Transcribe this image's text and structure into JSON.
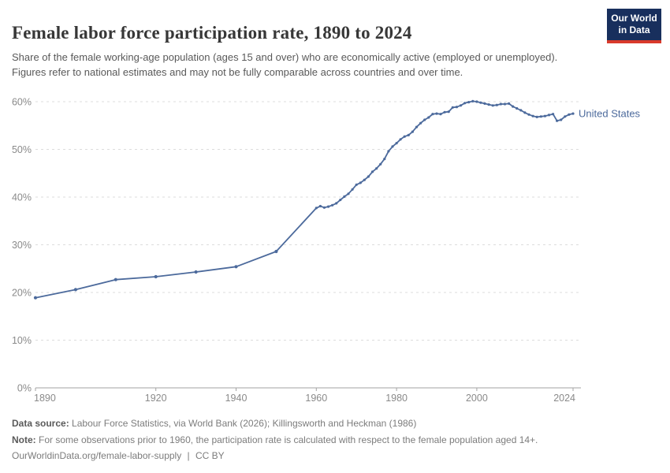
{
  "header": {
    "title": "Female labor force participation rate, 1890 to 2024",
    "subtitle": "Share of the female working-age population (ages 15 and over) who are economically active (employed or unemployed). Figures refer to national estimates and may not be fully comparable across countries and over time.",
    "logo": {
      "line1": "Our World",
      "line2": "in Data",
      "bg_color": "#182f5d",
      "accent_color": "#d93a2b"
    }
  },
  "chart_data": {
    "type": "line",
    "title": "Female labor force participation rate, 1890 to 2024",
    "xlabel": "",
    "ylabel": "",
    "xlim": [
      1890,
      2024
    ],
    "ylim": [
      0,
      60
    ],
    "grid": "horizontal-dashed",
    "legend_position": "end-of-line",
    "x_ticks": [
      1890,
      1920,
      1940,
      1960,
      1980,
      2000,
      2024
    ],
    "x_tick_labels": [
      "1890",
      "1920",
      "1940",
      "1960",
      "1980",
      "2000",
      "2024"
    ],
    "y_ticks": [
      0,
      10,
      20,
      30,
      40,
      50,
      60
    ],
    "y_tick_labels": [
      "0%",
      "10%",
      "20%",
      "30%",
      "40%",
      "50%",
      "60%"
    ],
    "series": [
      {
        "name": "United States",
        "color": "#4C6A9C",
        "points": [
          [
            1890,
            18.9
          ],
          [
            1900,
            20.6
          ],
          [
            1910,
            22.7
          ],
          [
            1920,
            23.3
          ],
          [
            1930,
            24.3
          ],
          [
            1940,
            25.4
          ],
          [
            1950,
            28.6
          ],
          [
            1960,
            37.7
          ],
          [
            1961,
            38.1
          ],
          [
            1962,
            37.8
          ],
          [
            1963,
            38.0
          ],
          [
            1964,
            38.3
          ],
          [
            1965,
            38.7
          ],
          [
            1966,
            39.4
          ],
          [
            1967,
            40.1
          ],
          [
            1968,
            40.7
          ],
          [
            1969,
            41.6
          ],
          [
            1970,
            42.6
          ],
          [
            1971,
            43.0
          ],
          [
            1972,
            43.6
          ],
          [
            1973,
            44.3
          ],
          [
            1974,
            45.3
          ],
          [
            1975,
            46.0
          ],
          [
            1976,
            46.9
          ],
          [
            1977,
            48.0
          ],
          [
            1978,
            49.6
          ],
          [
            1979,
            50.6
          ],
          [
            1980,
            51.3
          ],
          [
            1981,
            52.1
          ],
          [
            1982,
            52.7
          ],
          [
            1983,
            53.0
          ],
          [
            1984,
            53.7
          ],
          [
            1985,
            54.7
          ],
          [
            1986,
            55.5
          ],
          [
            1987,
            56.2
          ],
          [
            1988,
            56.7
          ],
          [
            1989,
            57.4
          ],
          [
            1990,
            57.5
          ],
          [
            1991,
            57.4
          ],
          [
            1992,
            57.8
          ],
          [
            1993,
            57.9
          ],
          [
            1994,
            58.8
          ],
          [
            1995,
            58.9
          ],
          [
            1996,
            59.2
          ],
          [
            1997,
            59.7
          ],
          [
            1998,
            59.9
          ],
          [
            1999,
            60.1
          ],
          [
            2000,
            60.0
          ],
          [
            2001,
            59.8
          ],
          [
            2002,
            59.6
          ],
          [
            2003,
            59.4
          ],
          [
            2004,
            59.2
          ],
          [
            2005,
            59.3
          ],
          [
            2006,
            59.5
          ],
          [
            2007,
            59.5
          ],
          [
            2008,
            59.6
          ],
          [
            2009,
            59.0
          ],
          [
            2010,
            58.6
          ],
          [
            2011,
            58.2
          ],
          [
            2012,
            57.7
          ],
          [
            2013,
            57.3
          ],
          [
            2014,
            57.0
          ],
          [
            2015,
            56.8
          ],
          [
            2016,
            56.9
          ],
          [
            2017,
            57.0
          ],
          [
            2018,
            57.2
          ],
          [
            2019,
            57.4
          ],
          [
            2020,
            56.0
          ],
          [
            2021,
            56.2
          ],
          [
            2022,
            56.9
          ],
          [
            2023,
            57.3
          ],
          [
            2024,
            57.5
          ]
        ]
      }
    ],
    "axis_colors": {
      "axis_line": "#a3a3a3",
      "gridline": "#dcdcdc",
      "tick_label": "#8a8a8a"
    }
  },
  "footer": {
    "data_source_label": "Data source:",
    "data_source": "Labour Force Statistics, via World Bank (2026); Killingsworth and Heckman (1986)",
    "note_label": "Note:",
    "note": "For some observations prior to 1960, the participation rate is calculated with respect to the female population aged 14+.",
    "url": "OurWorldinData.org/female-labor-supply",
    "separator": "|",
    "license": "CC BY"
  }
}
